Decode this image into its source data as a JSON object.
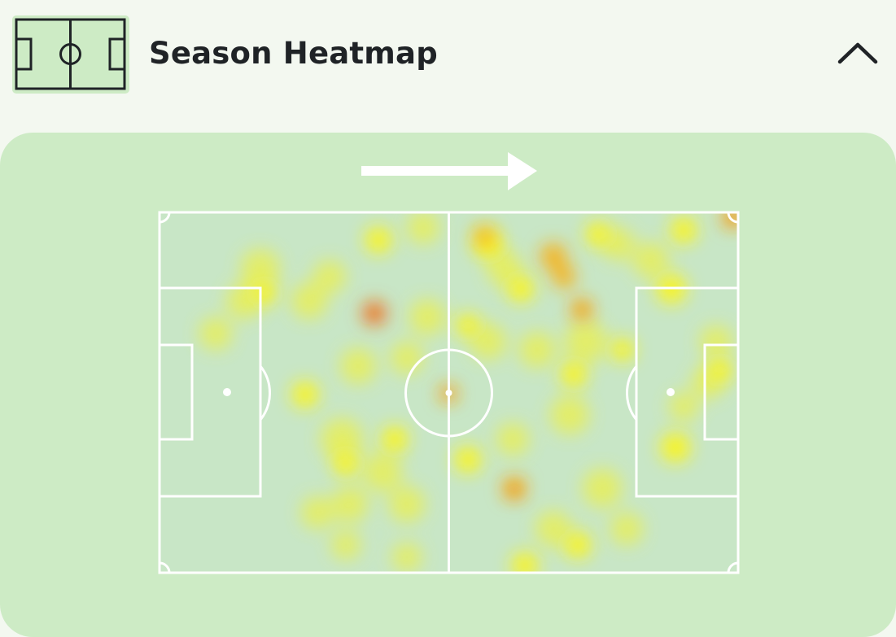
{
  "header": {
    "title": "Season Heatmap"
  }
}
